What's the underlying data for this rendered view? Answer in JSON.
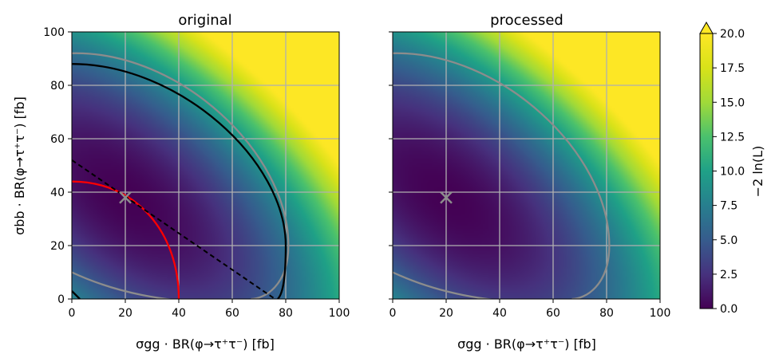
{
  "chart_data": [
    {
      "type": "heatmap",
      "title": "original",
      "xlabel": "σgg · BR(φ→τ⁺τ⁻) [fb]",
      "ylabel": "σbb · BR(φ→τ⁺τ⁻) [fb]",
      "xlim": [
        0,
        100
      ],
      "ylim": [
        0,
        100
      ],
      "x_ticks": [
        "0",
        "20",
        "40",
        "60",
        "80",
        "100"
      ],
      "y_ticks": [
        "0",
        "20",
        "40",
        "60",
        "80",
        "100"
      ],
      "grid": true,
      "best_fit_marker": {
        "x": 20,
        "y": 38
      },
      "contours": [
        {
          "color": "#888888",
          "label": "",
          "description": "gray ellipse from (0,92) through (81,20) to (67,0)"
        },
        {
          "color": "#000000",
          "label": "",
          "description": "black ellipse from (0,88) through (80,20) to (77,0)"
        },
        {
          "color": "#ff0000",
          "label": "",
          "description": "red quarter circle radius 40 from (0,44) to (40,0)"
        },
        {
          "color": "#000000",
          "style": "dashed",
          "label": "",
          "description": "dashed line from (0,52) to (76,0)"
        }
      ]
    },
    {
      "type": "heatmap",
      "title": "processed",
      "xlabel": "σgg · BR(φ→τ⁺τ⁻) [fb]",
      "xlim": [
        0,
        100
      ],
      "ylim": [
        0,
        100
      ],
      "x_ticks": [
        "0",
        "20",
        "40",
        "60",
        "80",
        "100"
      ],
      "grid": true,
      "best_fit_marker": {
        "x": 20,
        "y": 38
      },
      "contours": [
        {
          "color": "#888888",
          "label": "",
          "description": "gray ellipse from (0,92) through (81,20) to (67,0)"
        }
      ]
    }
  ],
  "colorbar": {
    "label": "−2 ln(L)",
    "min": 0.0,
    "max": 20.0,
    "extend": "max",
    "ticks": [
      "0.0",
      "2.5",
      "5.0",
      "7.5",
      "10.0",
      "12.5",
      "15.0",
      "17.5",
      "20.0"
    ],
    "colormap": "viridis"
  }
}
